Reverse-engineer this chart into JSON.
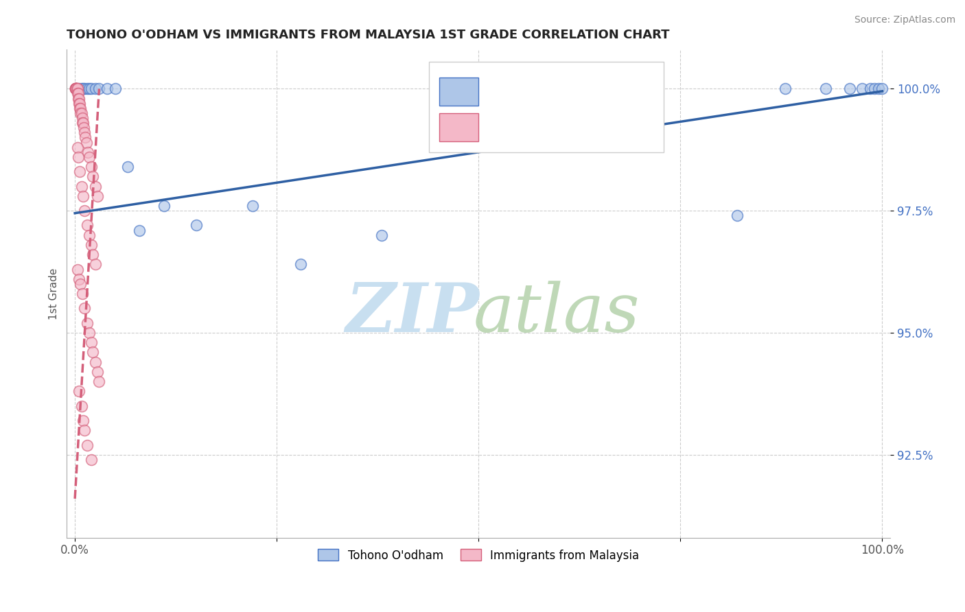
{
  "title": "TOHONO O'ODHAM VS IMMIGRANTS FROM MALAYSIA 1ST GRADE CORRELATION CHART",
  "source": "Source: ZipAtlas.com",
  "ylabel": "1st Grade",
  "xlim": [
    -0.01,
    1.01
  ],
  "ylim": [
    0.908,
    1.008
  ],
  "yticks": [
    0.925,
    0.95,
    0.975,
    1.0
  ],
  "ytick_labels": [
    "92.5%",
    "95.0%",
    "97.5%",
    "100.0%"
  ],
  "grid_color": "#cccccc",
  "background_color": "#ffffff",
  "blue_scatter_x": [
    0.002,
    0.005,
    0.008,
    0.01,
    0.012,
    0.015,
    0.018,
    0.02,
    0.025,
    0.03,
    0.04,
    0.05,
    0.065,
    0.08,
    0.11,
    0.15,
    0.22,
    0.28,
    0.38,
    0.62,
    0.72,
    0.82,
    0.88,
    0.93,
    0.96,
    0.975,
    0.985,
    0.99,
    0.995,
    1.0
  ],
  "blue_scatter_y": [
    1.0,
    1.0,
    1.0,
    1.0,
    1.0,
    1.0,
    1.0,
    1.0,
    1.0,
    1.0,
    1.0,
    1.0,
    0.984,
    0.971,
    0.976,
    0.972,
    0.976,
    0.964,
    0.97,
    1.0,
    1.0,
    0.974,
    1.0,
    1.0,
    1.0,
    1.0,
    1.0,
    1.0,
    1.0,
    1.0
  ],
  "pink_scatter_x": [
    0.0005,
    0.0005,
    0.001,
    0.001,
    0.001,
    0.001,
    0.002,
    0.002,
    0.002,
    0.003,
    0.003,
    0.003,
    0.004,
    0.004,
    0.005,
    0.005,
    0.006,
    0.006,
    0.007,
    0.007,
    0.008,
    0.009,
    0.009,
    0.01,
    0.011,
    0.012,
    0.013,
    0.014,
    0.016,
    0.018,
    0.02,
    0.022,
    0.025,
    0.028,
    0.003,
    0.004,
    0.006,
    0.008,
    0.01,
    0.012,
    0.015,
    0.018,
    0.02,
    0.022,
    0.025,
    0.003,
    0.005,
    0.007,
    0.009,
    0.012,
    0.015,
    0.018,
    0.02,
    0.022,
    0.025,
    0.028,
    0.03,
    0.005,
    0.008,
    0.01,
    0.012,
    0.015,
    0.02
  ],
  "pink_scatter_y": [
    1.0,
    1.0,
    1.0,
    1.0,
    1.0,
    1.0,
    1.0,
    1.0,
    1.0,
    1.0,
    1.0,
    0.999,
    0.999,
    0.998,
    0.998,
    0.997,
    0.997,
    0.996,
    0.996,
    0.995,
    0.995,
    0.994,
    0.993,
    0.993,
    0.992,
    0.991,
    0.99,
    0.989,
    0.987,
    0.986,
    0.984,
    0.982,
    0.98,
    0.978,
    0.988,
    0.986,
    0.983,
    0.98,
    0.978,
    0.975,
    0.972,
    0.97,
    0.968,
    0.966,
    0.964,
    0.963,
    0.961,
    0.96,
    0.958,
    0.955,
    0.952,
    0.95,
    0.948,
    0.946,
    0.944,
    0.942,
    0.94,
    0.938,
    0.935,
    0.932,
    0.93,
    0.927,
    0.924
  ],
  "blue_line_x": [
    0.0,
    1.0
  ],
  "blue_line_y": [
    0.9745,
    0.9995
  ],
  "pink_line_x": [
    0.0,
    0.03
  ],
  "pink_line_y": [
    0.916,
    1.0
  ],
  "blue_color": "#aec6e8",
  "blue_edge_color": "#4472c4",
  "pink_color": "#f4b8c8",
  "pink_edge_color": "#d45f7a",
  "blue_line_color": "#2e5fa3",
  "pink_line_color": "#d45f7a",
  "legend_label_blue": "Tohono O'odham",
  "legend_label_pink": "Immigrants from Malaysia",
  "marker_size": 130,
  "line_width": 2.5,
  "alpha": 0.65
}
